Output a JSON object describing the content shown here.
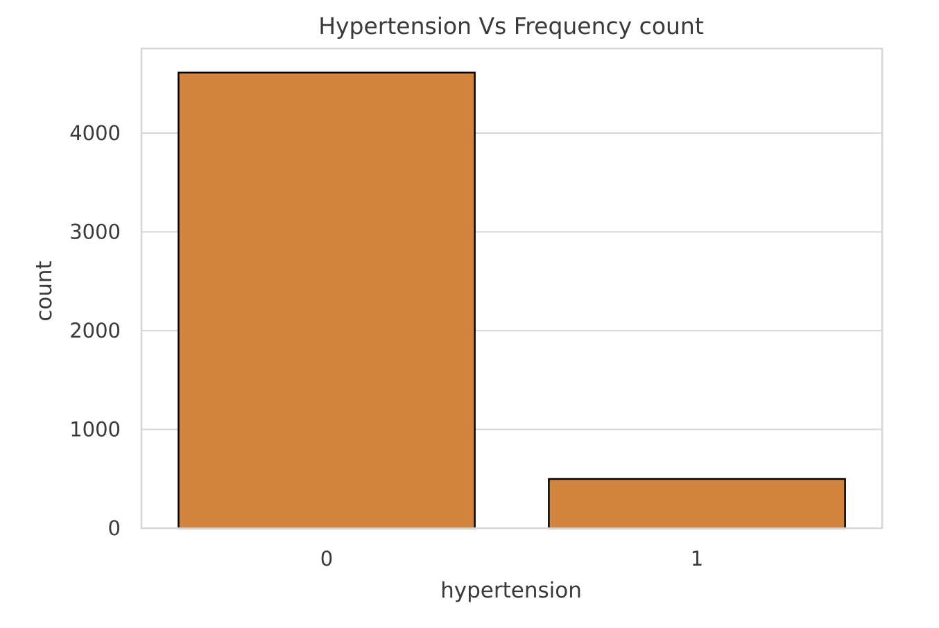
{
  "chart_data": {
    "type": "bar",
    "title": "Hypertension Vs Frequency count",
    "xlabel": "hypertension",
    "ylabel": "count",
    "categories": [
      "0",
      "1"
    ],
    "values": [
      4612,
      498
    ],
    "ylim": [
      0,
      4856
    ],
    "yticks": [
      0,
      1000,
      2000,
      3000,
      4000
    ],
    "grid": true,
    "colors": {
      "bar_fill": "#d3843f",
      "bar_edge": "#000000",
      "grid": "#d6d6d6",
      "frame": "#d6d6d6",
      "text": "#3a3a3a"
    }
  }
}
